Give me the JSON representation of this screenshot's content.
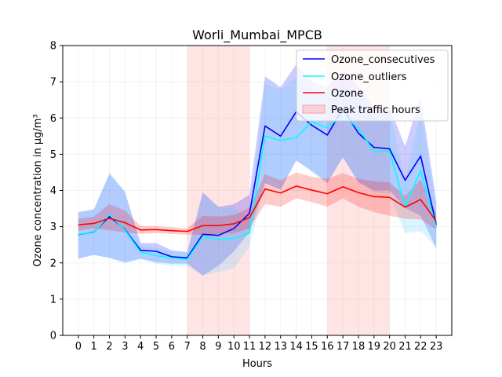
{
  "chart_data": {
    "type": "line",
    "title": "Worli_Mumbai_MPCB",
    "xlabel": "Hours",
    "ylabel": "Ozone concentration in µg/m³",
    "xlim": [
      -1.0,
      24.0
    ],
    "ylim": [
      0,
      8
    ],
    "x": [
      0,
      1,
      2,
      3,
      4,
      5,
      6,
      7,
      8,
      9,
      10,
      11,
      12,
      13,
      14,
      15,
      16,
      17,
      18,
      19,
      20,
      21,
      22,
      23
    ],
    "x_ticks": [
      0,
      1,
      2,
      3,
      4,
      5,
      6,
      7,
      8,
      9,
      10,
      11,
      12,
      13,
      14,
      15,
      16,
      17,
      18,
      19,
      20,
      21,
      22,
      23
    ],
    "y_ticks": [
      0,
      1,
      2,
      3,
      4,
      5,
      6,
      7,
      8
    ],
    "grid": true,
    "legend_position": "top-right",
    "peak_traffic": {
      "name": "Peak traffic hours",
      "color": "#ffb3b3",
      "ranges": [
        [
          7,
          11
        ],
        [
          16,
          20
        ]
      ]
    },
    "series": [
      {
        "name": "Ozone_consecutives",
        "color": "#0000ff",
        "band_color": "#0000ff",
        "values": [
          2.78,
          2.85,
          3.28,
          2.92,
          2.35,
          2.32,
          2.17,
          2.14,
          2.79,
          2.76,
          2.95,
          3.37,
          5.78,
          5.5,
          6.17,
          5.8,
          5.53,
          6.26,
          5.58,
          5.19,
          5.15,
          4.28,
          4.95,
          3.05
        ],
        "lower": [
          2.12,
          2.22,
          2.14,
          2.02,
          2.12,
          2.02,
          1.98,
          1.98,
          1.65,
          1.92,
          2.32,
          2.85,
          4.2,
          4.02,
          4.82,
          4.55,
          4.2,
          4.92,
          4.22,
          4.0,
          4.0,
          3.52,
          3.3,
          2.4
        ],
        "upper": [
          3.4,
          3.48,
          4.45,
          3.95,
          2.55,
          2.55,
          2.35,
          2.3,
          3.95,
          3.55,
          3.62,
          3.88,
          7.15,
          6.85,
          7.48,
          7.0,
          6.85,
          7.3,
          6.9,
          6.3,
          6.3,
          5.22,
          6.6,
          3.7
        ]
      },
      {
        "name": "Ozone_outliers",
        "color": "#00ffff",
        "band_color": "#44ccff",
        "values": [
          2.79,
          2.84,
          3.33,
          2.9,
          2.3,
          2.2,
          2.14,
          2.1,
          2.73,
          2.65,
          2.68,
          2.82,
          5.5,
          5.38,
          5.46,
          5.9,
          5.73,
          6.09,
          5.71,
          5.08,
          5.08,
          3.56,
          4.55,
          2.98
        ],
        "lower": [
          2.12,
          2.22,
          2.14,
          1.98,
          2.1,
          1.98,
          1.92,
          1.92,
          1.65,
          1.75,
          1.85,
          2.45,
          4.2,
          4.02,
          4.85,
          4.5,
          4.25,
          4.9,
          4.25,
          3.95,
          3.9,
          2.82,
          2.88,
          2.42
        ],
        "upper": [
          3.42,
          3.45,
          4.52,
          3.98,
          2.48,
          2.42,
          2.32,
          2.28,
          3.9,
          3.52,
          3.52,
          3.22,
          6.95,
          6.78,
          7.1,
          6.8,
          6.62,
          7.0,
          6.7,
          6.2,
          6.2,
          4.3,
          6.2,
          3.55
        ]
      },
      {
        "name": "Ozone",
        "color": "#ff0000",
        "band_color": "#ff0000",
        "values": [
          3.05,
          3.09,
          3.23,
          3.11,
          2.91,
          2.92,
          2.89,
          2.87,
          3.03,
          3.03,
          3.08,
          3.25,
          4.04,
          3.93,
          4.12,
          4.01,
          3.91,
          4.1,
          3.94,
          3.83,
          3.81,
          3.54,
          3.75,
          3.15
        ],
        "lower": [
          2.88,
          2.95,
          2.9,
          2.84,
          2.8,
          2.82,
          2.8,
          2.78,
          2.78,
          2.8,
          2.82,
          2.95,
          3.62,
          3.55,
          3.78,
          3.68,
          3.55,
          3.78,
          3.55,
          3.4,
          3.3,
          3.22,
          3.2,
          2.92
        ],
        "upper": [
          3.22,
          3.28,
          3.62,
          3.45,
          3.02,
          3.02,
          2.98,
          2.95,
          3.3,
          3.28,
          3.32,
          3.52,
          4.45,
          4.28,
          4.5,
          4.38,
          4.32,
          4.48,
          4.32,
          4.25,
          4.22,
          3.85,
          4.3,
          3.38
        ]
      }
    ]
  }
}
